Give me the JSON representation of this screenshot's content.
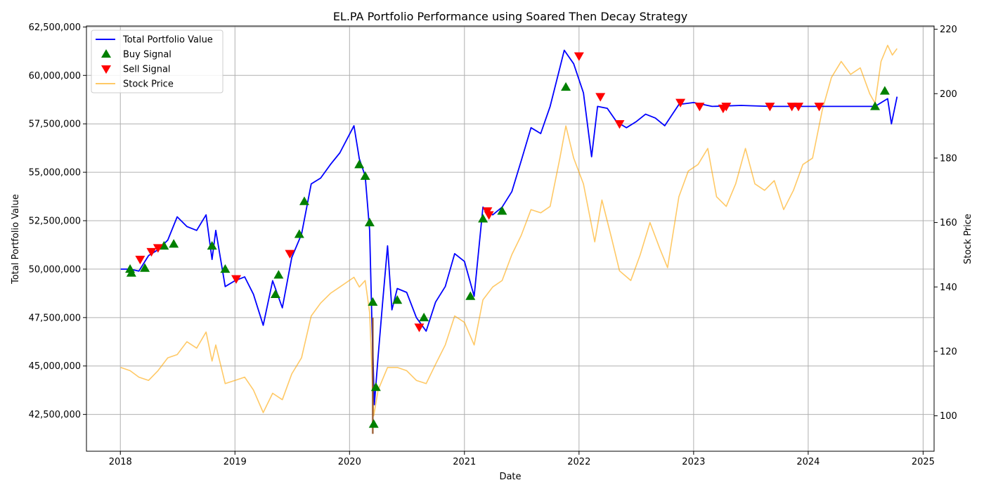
{
  "chart_data": {
    "type": "line",
    "title": "EL.PA Portfolio Performance using Soared Then Decay Strategy",
    "xlabel": "Date",
    "ylabel": "Total Portfolio Value",
    "y2label": "Stock Price",
    "x_ticks": [
      "2018",
      "2019",
      "2020",
      "2021",
      "2022",
      "2023",
      "2024",
      "2025"
    ],
    "y_ticks": [
      "42,500,000",
      "45,000,000",
      "47,500,000",
      "50,000,000",
      "52,500,000",
      "55,000,000",
      "57,500,000",
      "60,000,000",
      "62,500,000"
    ],
    "y2_ticks": [
      "100",
      "120",
      "140",
      "160",
      "180",
      "200",
      "220"
    ],
    "xlim": [
      "2017-09-15",
      "2025-02-05"
    ],
    "ylim": [
      40600000,
      62550000
    ],
    "y2lim": [
      89,
      221
    ],
    "grid": true,
    "legend_position": "upper-left",
    "legend": [
      {
        "label": "Total Portfolio Value",
        "kind": "line",
        "color": "#0000ff"
      },
      {
        "label": "Buy Signal",
        "kind": "triangle-up",
        "color": "#008000"
      },
      {
        "label": "Sell Signal",
        "kind": "triangle-down",
        "color": "#ff0000"
      },
      {
        "label": "Stock Price",
        "kind": "line",
        "color": "#ffa500"
      }
    ],
    "series": [
      {
        "name": "Total Portfolio Value",
        "axis": "left",
        "color": "#0000ff",
        "points": [
          [
            "2018-01-02",
            50000000
          ],
          [
            "2018-02-01",
            50000000
          ],
          [
            "2018-03-01",
            49900000
          ],
          [
            "2018-04-01",
            50700000
          ],
          [
            "2018-05-01",
            51000000
          ],
          [
            "2018-06-01",
            51500000
          ],
          [
            "2018-07-01",
            52700000
          ],
          [
            "2018-08-01",
            52200000
          ],
          [
            "2018-09-01",
            52000000
          ],
          [
            "2018-10-01",
            52800000
          ],
          [
            "2018-10-20",
            50500000
          ],
          [
            "2018-11-01",
            52000000
          ],
          [
            "2018-12-01",
            49100000
          ],
          [
            "2019-01-01",
            49400000
          ],
          [
            "2019-02-01",
            49600000
          ],
          [
            "2019-03-01",
            48700000
          ],
          [
            "2019-04-01",
            47100000
          ],
          [
            "2019-05-01",
            49400000
          ],
          [
            "2019-06-01",
            48000000
          ],
          [
            "2019-07-01",
            50600000
          ],
          [
            "2019-08-01",
            51800000
          ],
          [
            "2019-09-01",
            54400000
          ],
          [
            "2019-10-01",
            54700000
          ],
          [
            "2019-11-01",
            55400000
          ],
          [
            "2019-12-01",
            56000000
          ],
          [
            "2020-01-15",
            57400000
          ],
          [
            "2020-02-01",
            55700000
          ],
          [
            "2020-02-20",
            54800000
          ],
          [
            "2020-03-05",
            52000000
          ],
          [
            "2020-03-12",
            47500000
          ],
          [
            "2020-03-20",
            43000000
          ],
          [
            "2020-04-01",
            45500000
          ],
          [
            "2020-04-15",
            48200000
          ],
          [
            "2020-05-01",
            51200000
          ],
          [
            "2020-05-15",
            47900000
          ],
          [
            "2020-06-01",
            49000000
          ],
          [
            "2020-07-01",
            48800000
          ],
          [
            "2020-08-01",
            47500000
          ],
          [
            "2020-09-01",
            46800000
          ],
          [
            "2020-10-01",
            48300000
          ],
          [
            "2020-11-01",
            49100000
          ],
          [
            "2020-12-01",
            50800000
          ],
          [
            "2021-01-01",
            50400000
          ],
          [
            "2021-02-01",
            48600000
          ],
          [
            "2021-03-01",
            53200000
          ],
          [
            "2021-04-01",
            52800000
          ],
          [
            "2021-05-01",
            53200000
          ],
          [
            "2021-06-01",
            54000000
          ],
          [
            "2021-07-01",
            55600000
          ],
          [
            "2021-08-01",
            57300000
          ],
          [
            "2021-09-01",
            57000000
          ],
          [
            "2021-10-01",
            58400000
          ],
          [
            "2021-11-01",
            60400000
          ],
          [
            "2021-11-15",
            61300000
          ],
          [
            "2021-12-15",
            60600000
          ],
          [
            "2022-01-15",
            59100000
          ],
          [
            "2022-02-10",
            55800000
          ],
          [
            "2022-03-01",
            58400000
          ],
          [
            "2022-04-01",
            58300000
          ],
          [
            "2022-05-01",
            57600000
          ],
          [
            "2022-06-01",
            57300000
          ],
          [
            "2022-07-01",
            57600000
          ],
          [
            "2022-08-01",
            58000000
          ],
          [
            "2022-09-01",
            57800000
          ],
          [
            "2022-10-01",
            57400000
          ],
          [
            "2022-11-15",
            58500000
          ],
          [
            "2023-01-01",
            58600000
          ],
          [
            "2023-03-01",
            58400000
          ],
          [
            "2023-06-01",
            58450000
          ],
          [
            "2023-09-01",
            58400000
          ],
          [
            "2024-01-01",
            58400000
          ],
          [
            "2024-06-01",
            58400000
          ],
          [
            "2024-08-01",
            58400000
          ],
          [
            "2024-09-10",
            58800000
          ],
          [
            "2024-09-22",
            57500000
          ],
          [
            "2024-10-10",
            58900000
          ]
        ]
      },
      {
        "name": "Stock Price",
        "axis": "right",
        "color": "#ffa500",
        "points": [
          [
            "2018-01-02",
            115
          ],
          [
            "2018-02-01",
            114
          ],
          [
            "2018-03-01",
            112
          ],
          [
            "2018-04-01",
            111
          ],
          [
            "2018-05-01",
            114
          ],
          [
            "2018-06-01",
            118
          ],
          [
            "2018-07-01",
            119
          ],
          [
            "2018-08-01",
            123
          ],
          [
            "2018-09-01",
            121
          ],
          [
            "2018-10-01",
            126
          ],
          [
            "2018-10-20",
            117
          ],
          [
            "2018-11-01",
            122
          ],
          [
            "2018-12-01",
            110
          ],
          [
            "2019-01-01",
            111
          ],
          [
            "2019-02-01",
            112
          ],
          [
            "2019-03-01",
            108
          ],
          [
            "2019-04-01",
            101
          ],
          [
            "2019-05-01",
            107
          ],
          [
            "2019-06-01",
            105
          ],
          [
            "2019-07-01",
            113
          ],
          [
            "2019-08-01",
            118
          ],
          [
            "2019-09-01",
            131
          ],
          [
            "2019-10-01",
            135
          ],
          [
            "2019-11-01",
            138
          ],
          [
            "2019-12-01",
            140
          ],
          [
            "2020-01-15",
            143
          ],
          [
            "2020-02-01",
            140
          ],
          [
            "2020-02-20",
            142
          ],
          [
            "2020-03-05",
            132
          ],
          [
            "2020-03-18",
            100
          ],
          [
            "2020-04-01",
            108
          ],
          [
            "2020-05-01",
            115
          ],
          [
            "2020-06-01",
            115
          ],
          [
            "2020-07-01",
            114
          ],
          [
            "2020-08-01",
            111
          ],
          [
            "2020-09-01",
            110
          ],
          [
            "2020-10-01",
            116
          ],
          [
            "2020-11-01",
            122
          ],
          [
            "2020-12-01",
            131
          ],
          [
            "2021-01-01",
            129
          ],
          [
            "2021-02-01",
            122
          ],
          [
            "2021-03-01",
            136
          ],
          [
            "2021-04-01",
            140
          ],
          [
            "2021-05-01",
            142
          ],
          [
            "2021-06-01",
            150
          ],
          [
            "2021-07-01",
            156
          ],
          [
            "2021-08-01",
            164
          ],
          [
            "2021-09-01",
            163
          ],
          [
            "2021-10-01",
            165
          ],
          [
            "2021-11-01",
            180
          ],
          [
            "2021-11-20",
            190
          ],
          [
            "2021-12-15",
            180
          ],
          [
            "2022-01-15",
            172
          ],
          [
            "2022-02-20",
            154
          ],
          [
            "2022-03-15",
            167
          ],
          [
            "2022-04-15",
            155
          ],
          [
            "2022-05-10",
            145
          ],
          [
            "2022-06-15",
            142
          ],
          [
            "2022-07-15",
            150
          ],
          [
            "2022-08-15",
            160
          ],
          [
            "2022-09-15",
            152
          ],
          [
            "2022-10-10",
            146
          ],
          [
            "2022-11-15",
            168
          ],
          [
            "2022-12-15",
            176
          ],
          [
            "2023-01-15",
            178
          ],
          [
            "2023-02-15",
            183
          ],
          [
            "2023-03-15",
            168
          ],
          [
            "2023-04-15",
            165
          ],
          [
            "2023-05-15",
            172
          ],
          [
            "2023-06-15",
            183
          ],
          [
            "2023-07-15",
            172
          ],
          [
            "2023-08-15",
            170
          ],
          [
            "2023-09-15",
            173
          ],
          [
            "2023-10-15",
            164
          ],
          [
            "2023-11-15",
            170
          ],
          [
            "2023-12-15",
            178
          ],
          [
            "2024-01-15",
            180
          ],
          [
            "2024-02-15",
            195
          ],
          [
            "2024-03-15",
            205
          ],
          [
            "2024-04-15",
            210
          ],
          [
            "2024-05-15",
            206
          ],
          [
            "2024-06-15",
            208
          ],
          [
            "2024-07-15",
            200
          ],
          [
            "2024-08-01",
            197
          ],
          [
            "2024-08-20",
            210
          ],
          [
            "2024-09-10",
            215
          ],
          [
            "2024-09-25",
            212
          ],
          [
            "2024-10-10",
            214
          ]
        ]
      }
    ],
    "buy_signals": [
      [
        "2018-02-01",
        50000000
      ],
      [
        "2018-02-05",
        49800000
      ],
      [
        "2018-03-20",
        50050000
      ],
      [
        "2018-05-20",
        51200000
      ],
      [
        "2018-06-20",
        51300000
      ],
      [
        "2018-10-20",
        51200000
      ],
      [
        "2018-12-01",
        50000000
      ],
      [
        "2019-05-10",
        48700000
      ],
      [
        "2019-05-20",
        49700000
      ],
      [
        "2019-07-25",
        51800000
      ],
      [
        "2019-08-10",
        53500000
      ],
      [
        "2020-02-01",
        55400000
      ],
      [
        "2020-02-20",
        54800000
      ],
      [
        "2020-03-05",
        52400000
      ],
      [
        "2020-03-15",
        48300000
      ],
      [
        "2020-03-25",
        43900000
      ],
      [
        "2020-03-18",
        42000000
      ],
      [
        "2020-06-01",
        48400000
      ],
      [
        "2020-08-25",
        47500000
      ],
      [
        "2021-01-20",
        48600000
      ],
      [
        "2021-03-01",
        52600000
      ],
      [
        "2021-05-01",
        53000000
      ],
      [
        "2021-11-20",
        59400000
      ],
      [
        "2024-08-01",
        58400000
      ],
      [
        "2024-09-01",
        59200000
      ]
    ],
    "sell_signals": [
      [
        "2018-03-05",
        50500000
      ],
      [
        "2018-04-10",
        50900000
      ],
      [
        "2018-05-01",
        51100000
      ],
      [
        "2019-01-05",
        49500000
      ],
      [
        "2019-06-25",
        50800000
      ],
      [
        "2020-08-10",
        47000000
      ],
      [
        "2021-03-15",
        53000000
      ],
      [
        "2021-03-20",
        52800000
      ],
      [
        "2022-01-01",
        61000000
      ],
      [
        "2022-03-10",
        58900000
      ],
      [
        "2022-05-10",
        57500000
      ],
      [
        "2022-11-20",
        58600000
      ],
      [
        "2023-01-20",
        58400000
      ],
      [
        "2023-04-05",
        58300000
      ],
      [
        "2023-04-15",
        58400000
      ],
      [
        "2023-09-01",
        58400000
      ],
      [
        "2023-11-10",
        58400000
      ],
      [
        "2023-12-01",
        58400000
      ],
      [
        "2024-02-05",
        58400000
      ]
    ],
    "crash_bar": [
      "2020-03-15",
      41500000
    ]
  }
}
